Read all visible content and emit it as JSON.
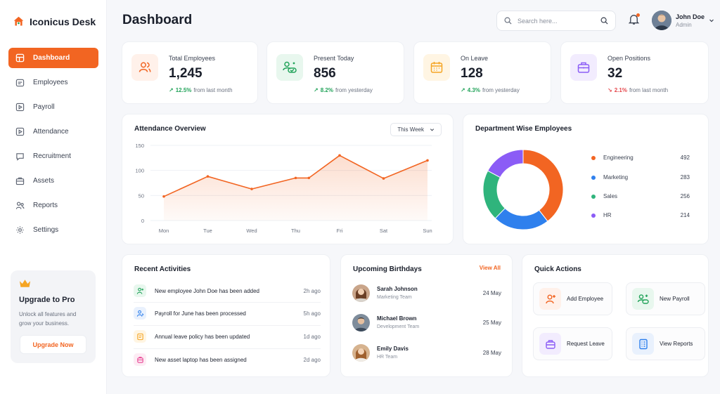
{
  "brand": {
    "name": "Iconicus Desk"
  },
  "sidebar": {
    "items": [
      {
        "label": "Dashboard",
        "icon": "dashboard-icon",
        "active": true
      },
      {
        "label": "Employees",
        "icon": "employees-icon"
      },
      {
        "label": "Payroll",
        "icon": "payroll-icon"
      },
      {
        "label": "Attendance",
        "icon": "attendance-icon"
      },
      {
        "label": "Recruitment",
        "icon": "recruitment-icon"
      },
      {
        "label": "Assets",
        "icon": "assets-icon"
      },
      {
        "label": "Reports",
        "icon": "reports-icon"
      },
      {
        "label": "Settings",
        "icon": "settings-icon"
      }
    ],
    "upgrade": {
      "title": "Upgrade to Pro",
      "description": "Unlock all features and grow your business.",
      "button": "Upgrade Now"
    }
  },
  "header": {
    "title": "Dashboard",
    "search_placeholder": "Search here...",
    "user": {
      "name": "John Doe",
      "role": "Admin"
    }
  },
  "stats": [
    {
      "label": "Total Employees",
      "value": "1,245",
      "trend": "12.5%",
      "direction": "up",
      "period": "from last month",
      "color": "#f26522",
      "bg": "#fff1ea"
    },
    {
      "label": "Present Today",
      "value": "856",
      "trend": "8.2%",
      "direction": "up",
      "period": "from yesterday",
      "color": "#22a35a",
      "bg": "#e8f7ee"
    },
    {
      "label": "On Leave",
      "value": "128",
      "trend": "4.3%",
      "direction": "up",
      "period": "from yesterday",
      "color": "#f5a524",
      "bg": "#fff5e3"
    },
    {
      "label": "Open Positions",
      "value": "32",
      "trend": "2.1%",
      "direction": "down",
      "period": "from last month",
      "color": "#8b5cf6",
      "bg": "#f2ecfe"
    }
  ],
  "attendance": {
    "title": "Attendance Overview",
    "filter": "This Week"
  },
  "chart_data": [
    {
      "type": "area",
      "title": "Attendance Overview",
      "categories": [
        "Mon",
        "Tue",
        "Wed",
        "Thu",
        "Fri",
        "Sat",
        "Sun"
      ],
      "x": [
        0,
        1,
        2,
        3,
        3.3,
        4,
        5,
        6
      ],
      "values": [
        48,
        88,
        63,
        85,
        85,
        130,
        84,
        120
      ],
      "y_ticks": [
        0,
        50,
        100,
        150
      ],
      "ylim": [
        0,
        150
      ],
      "grid": true,
      "color": "#f26522"
    },
    {
      "type": "pie",
      "title": "Department Wise Employees",
      "labels": [
        "Engineering",
        "Marketing",
        "Sales",
        "HR"
      ],
      "values": [
        492,
        283,
        256,
        214
      ],
      "colors": [
        "#f26522",
        "#2f80ed",
        "#2fb47c",
        "#8b5cf6"
      ],
      "donut": true,
      "legend": "right"
    }
  ],
  "activities": {
    "title": "Recent Activities",
    "items": [
      {
        "text": "New employee John Doe has been added",
        "time": "2h ago",
        "icon": "user-add-icon",
        "color": "#22a35a",
        "bg": "#e8f7ee"
      },
      {
        "text": "Payroll for June has been processed",
        "time": "5h ago",
        "icon": "payroll-icon",
        "color": "#2f80ed",
        "bg": "#e9f1fd"
      },
      {
        "text": "Annual leave policy has been updated",
        "time": "1d ago",
        "icon": "document-icon",
        "color": "#f5a524",
        "bg": "#fff5e3"
      },
      {
        "text": "New asset laptop has been assigned",
        "time": "2d ago",
        "icon": "laptop-icon",
        "color": "#e84393",
        "bg": "#fdecf4"
      }
    ]
  },
  "birthdays": {
    "title": "Upcoming Birthdays",
    "view_all": "View All",
    "items": [
      {
        "name": "Sarah Johnson",
        "team": "Marketing Team",
        "date": "24 May"
      },
      {
        "name": "Michael Brown",
        "team": "Development Team",
        "date": "25 May"
      },
      {
        "name": "Emily Davis",
        "team": "HR Team",
        "date": "28 May"
      }
    ]
  },
  "quick_actions": {
    "title": "Quick Actions",
    "items": [
      {
        "label": "Add Employee",
        "icon": "add-employee-icon",
        "color": "#f26522",
        "bg": "#fff1ea"
      },
      {
        "label": "New Payroll",
        "icon": "new-payroll-icon",
        "color": "#22a35a",
        "bg": "#e8f7ee"
      },
      {
        "label": "Request Leave",
        "icon": "request-leave-icon",
        "color": "#8b5cf6",
        "bg": "#f2ecfe"
      },
      {
        "label": "View Reports",
        "icon": "view-reports-icon",
        "color": "#2f80ed",
        "bg": "#e9f1fd"
      }
    ]
  }
}
